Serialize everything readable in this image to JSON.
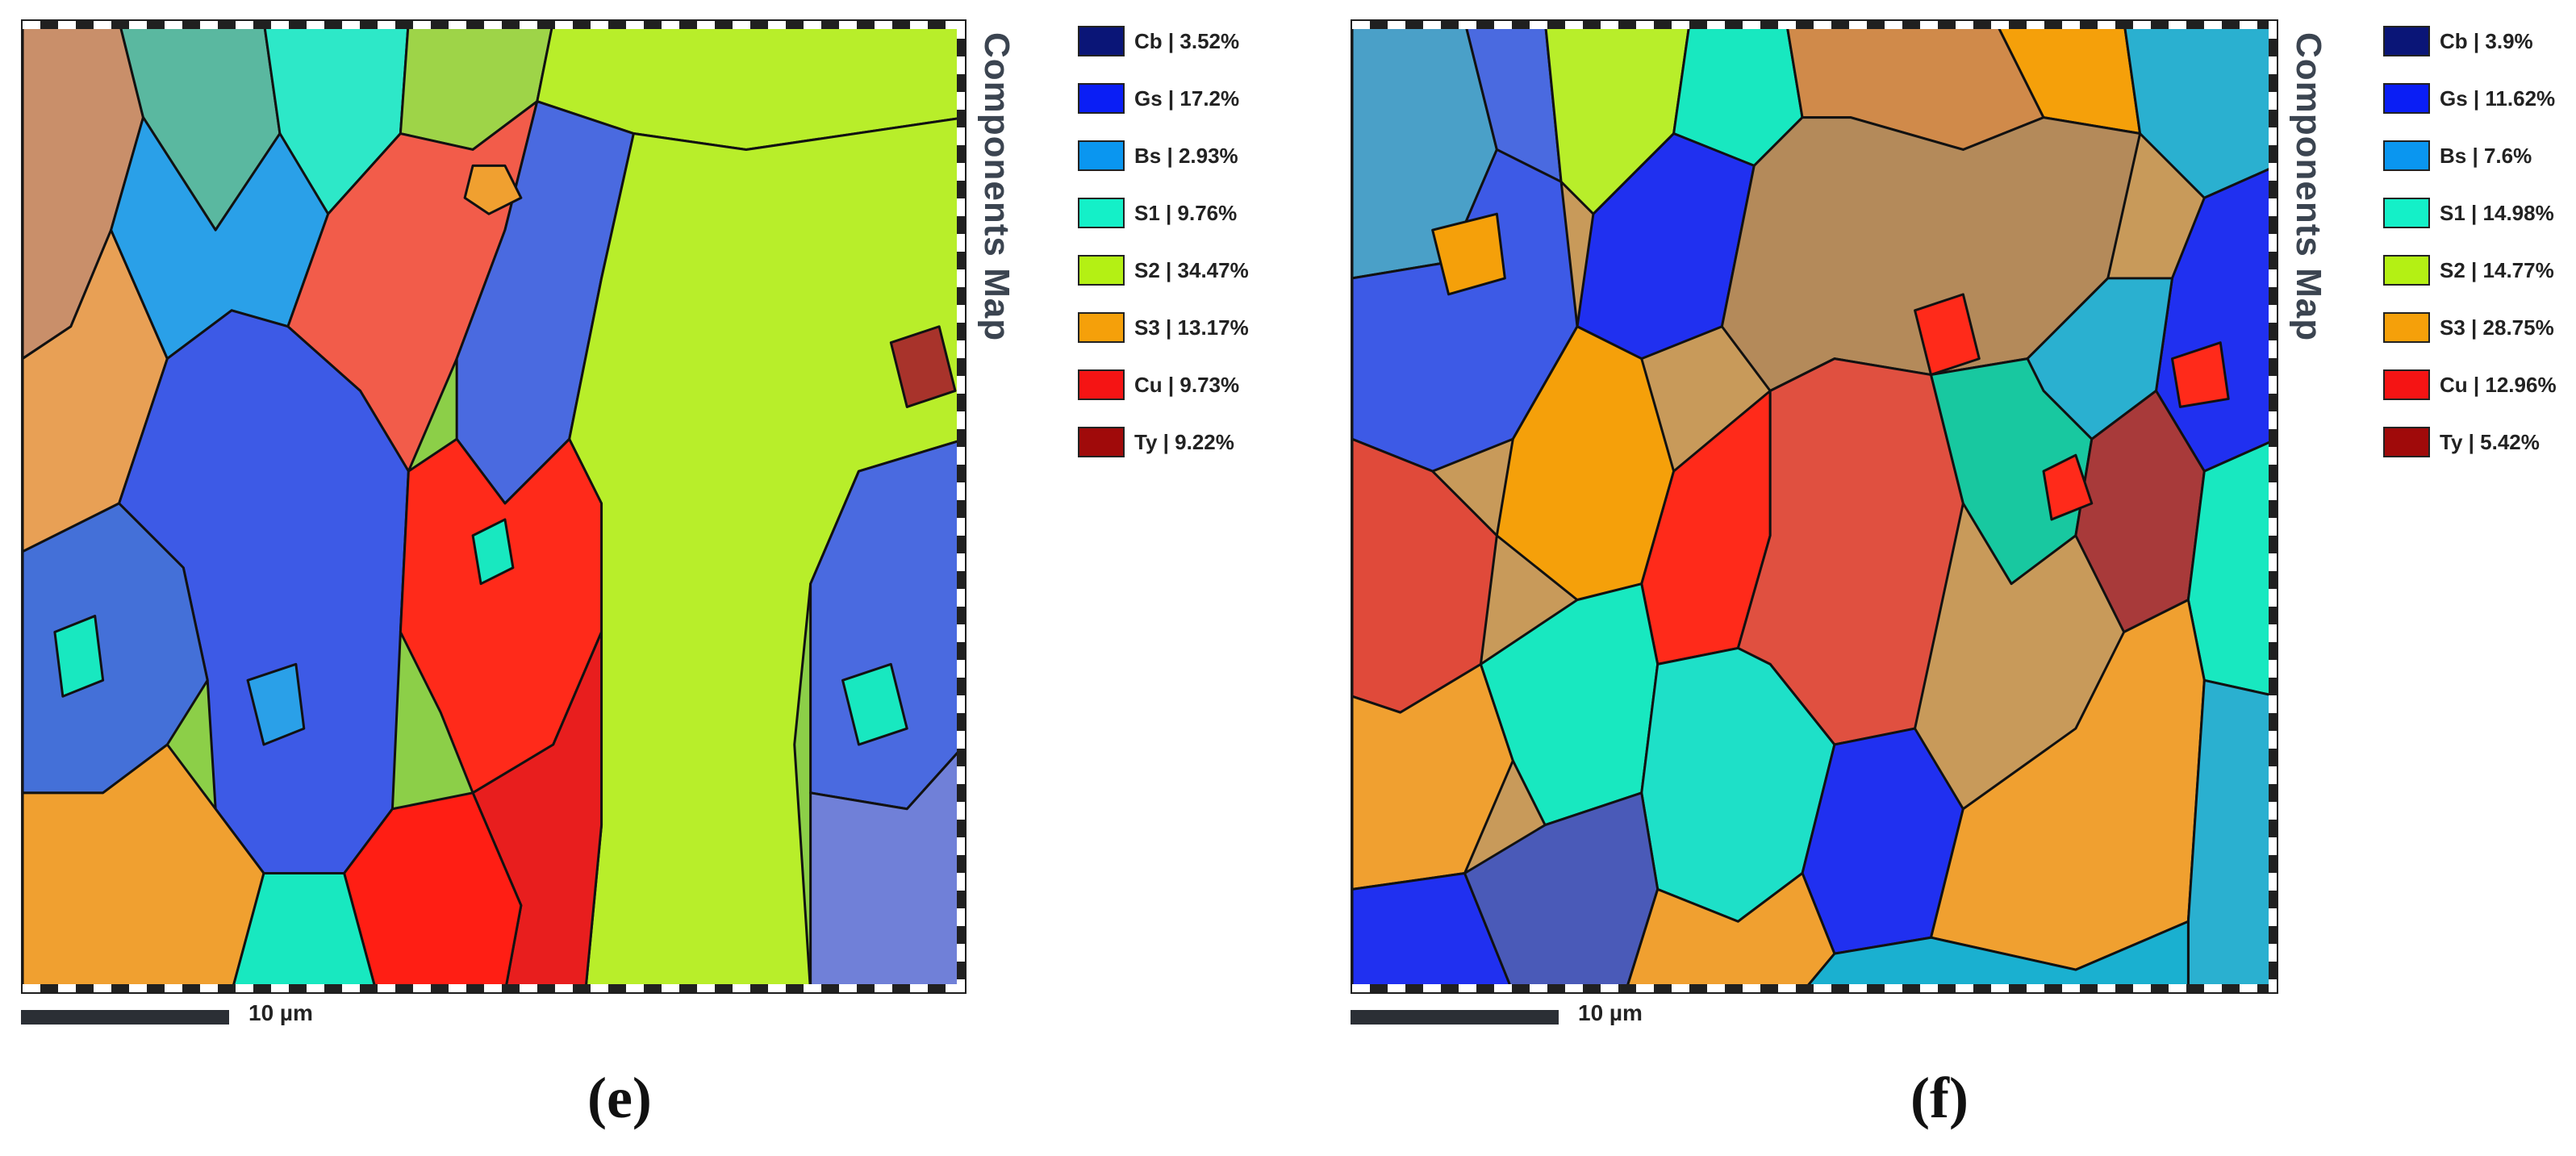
{
  "panels": [
    {
      "id": "e",
      "map_title": "Components Map",
      "scale_label": "10 µm",
      "panel_label": "(e)",
      "legend": [
        {
          "label": "Cb | 3.52%",
          "color": "#0a1577"
        },
        {
          "label": "Gs | 17.2%",
          "color": "#0a1ef5"
        },
        {
          "label": "Bs | 2.93%",
          "color": "#0a96f0"
        },
        {
          "label": "S1 | 9.76%",
          "color": "#14f0c8"
        },
        {
          "label": "S2 | 34.47%",
          "color": "#b4f014"
        },
        {
          "label": "S3 | 13.17%",
          "color": "#f5a00a"
        },
        {
          "label": "Cu | 9.73%",
          "color": "#f51414"
        },
        {
          "label": "Ty | 9.22%",
          "color": "#a00a0a"
        }
      ]
    },
    {
      "id": "f",
      "map_title": "Components Map",
      "scale_label": "10 µm",
      "panel_label": "(f)",
      "legend": [
        {
          "label": "Cb | 3.9%",
          "color": "#0a1577"
        },
        {
          "label": "Gs | 11.62%",
          "color": "#0a1ef5"
        },
        {
          "label": "Bs | 7.6%",
          "color": "#0a96f0"
        },
        {
          "label": "S1 | 14.98%",
          "color": "#14f0c8"
        },
        {
          "label": "S2 | 14.77%",
          "color": "#b4f014"
        },
        {
          "label": "S3 | 28.75%",
          "color": "#f5a00a"
        },
        {
          "label": "Cu | 12.96%",
          "color": "#f51414"
        },
        {
          "label": "Ty | 5.42%",
          "color": "#a00a0a"
        }
      ]
    }
  ]
}
